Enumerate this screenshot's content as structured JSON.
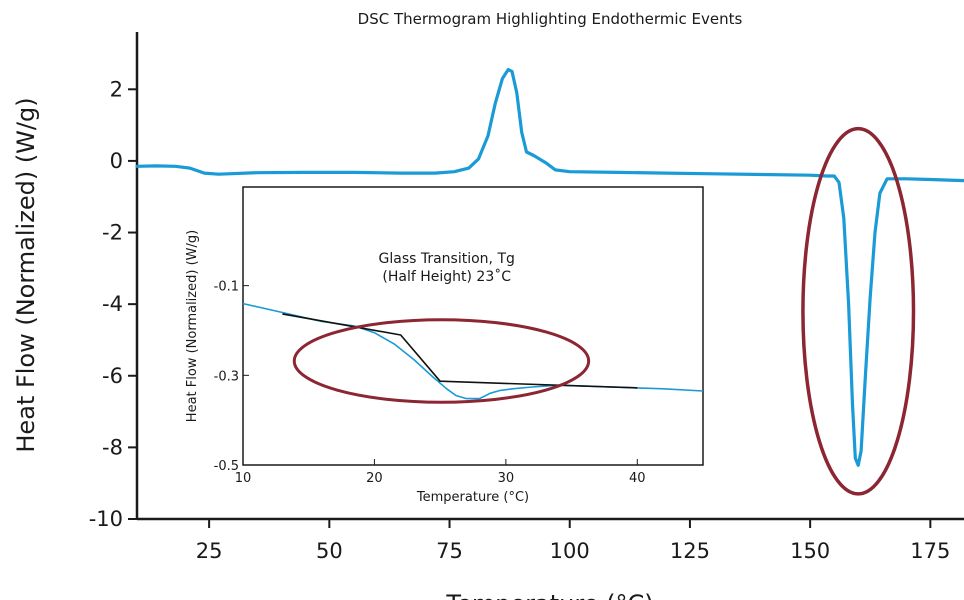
{
  "chart_data": [
    {
      "type": "line",
      "title": "DSC Thermogram Highlighting Endothermic Events",
      "xlabel": "Temperature (°C)",
      "ylabel": "Heat Flow (Normalized) (W/g)",
      "xlim": [
        10,
        182
      ],
      "ylim": [
        -10,
        3.6
      ],
      "x_ticks": [
        25,
        50,
        75,
        100,
        125,
        150,
        175
      ],
      "y_ticks": [
        2,
        0,
        -2,
        -4,
        -6,
        -8,
        -10
      ],
      "grid": false,
      "series": [
        {
          "color": "#1a9ad6",
          "x": [
            10,
            14,
            18,
            21,
            24,
            27,
            35,
            45,
            55,
            65,
            72,
            76,
            79,
            81,
            83,
            84.5,
            86,
            87.2,
            88,
            89,
            90,
            91,
            92.5,
            95,
            97,
            100,
            110,
            120,
            130,
            140,
            150,
            153.5,
            155,
            156,
            157,
            158,
            158.8,
            159.4,
            160,
            160.6,
            161.5,
            162.5,
            163.5,
            164.5,
            166,
            170,
            175,
            182
          ],
          "y": [
            -0.15,
            -0.14,
            -0.15,
            -0.2,
            -0.34,
            -0.37,
            -0.33,
            -0.32,
            -0.32,
            -0.34,
            -0.34,
            -0.3,
            -0.2,
            0.05,
            0.7,
            1.6,
            2.3,
            2.55,
            2.5,
            1.9,
            0.8,
            0.25,
            0.15,
            -0.05,
            -0.25,
            -0.3,
            -0.32,
            -0.34,
            -0.36,
            -0.38,
            -0.4,
            -0.42,
            -0.42,
            -0.6,
            -1.6,
            -4.0,
            -6.8,
            -8.3,
            -8.5,
            -8.1,
            -6.0,
            -3.8,
            -2.0,
            -0.9,
            -0.5,
            -0.5,
            -0.52,
            -0.55
          ]
        }
      ],
      "annotations": [
        {
          "type": "ellipse",
          "color": "#8b2632",
          "center": [
            160,
            -4.2
          ],
          "radius": [
            11.5,
            5.1
          ]
        }
      ]
    },
    {
      "type": "line",
      "title": "",
      "xlabel": "Temperature (°C)",
      "ylabel": "Heat Flow (Normalized) (W/g)",
      "xlim": [
        10,
        45
      ],
      "ylim": [
        -0.5,
        0.12
      ],
      "x_ticks": [
        10,
        20,
        30,
        40
      ],
      "y_ticks": [
        -0.1,
        -0.3,
        -0.5
      ],
      "y_tick_labels": [
        "-0.1",
        "-0.3",
        "-0.5"
      ],
      "grid": false,
      "series": [
        {
          "color": "#1a9ad6",
          "x": [
            10,
            13,
            16,
            18.5,
            20,
            21.5,
            23,
            24.5,
            25.5,
            26.2,
            27,
            28,
            28.8,
            29.5,
            30.5,
            32,
            34,
            36,
            38,
            40,
            42,
            45
          ],
          "y": [
            -0.14,
            -0.16,
            -0.18,
            -0.19,
            -0.205,
            -0.23,
            -0.265,
            -0.305,
            -0.33,
            -0.345,
            -0.352,
            -0.352,
            -0.34,
            -0.334,
            -0.33,
            -0.326,
            -0.322,
            -0.324,
            -0.326,
            -0.328,
            -0.33,
            -0.335
          ]
        },
        {
          "color": "#111111",
          "x": [
            13,
            22,
            25,
            40
          ],
          "y": [
            -0.163,
            -0.21,
            -0.313,
            -0.328
          ]
        }
      ],
      "annotations": [
        {
          "type": "text",
          "lines": [
            "Glass Transition, Tg",
            "(Half Height) 23˚C"
          ],
          "position": [
            25.5,
            -0.05
          ]
        },
        {
          "type": "ellipse",
          "color": "#8b2632",
          "center": [
            25.1,
            -0.268
          ],
          "radius": [
            11.2,
            0.092
          ]
        }
      ]
    }
  ]
}
